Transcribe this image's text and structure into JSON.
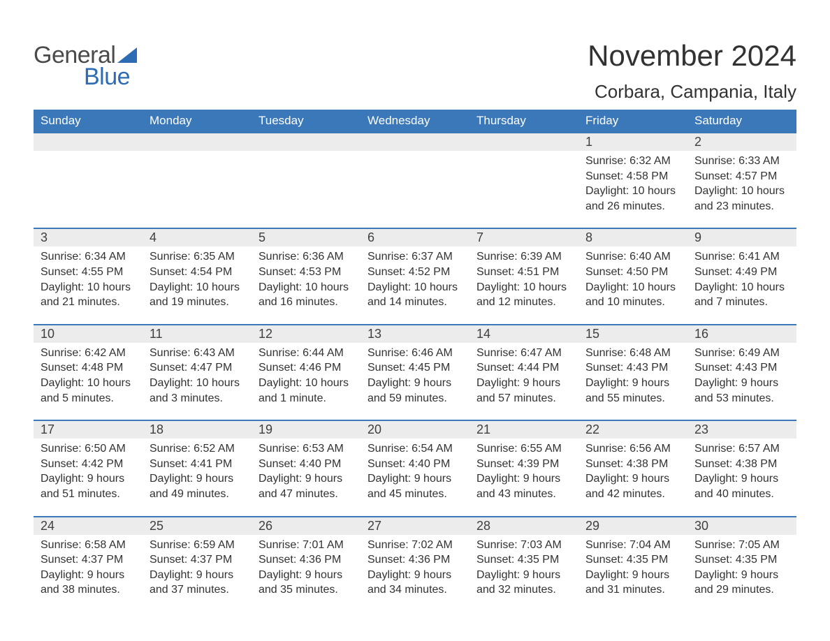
{
  "logo": {
    "text_general": "General",
    "text_blue": "Blue",
    "general_color": "#4a4a4a",
    "blue_color": "#2d6bb4"
  },
  "header": {
    "month_title": "November 2024",
    "location": "Corbara, Campania, Italy"
  },
  "colors": {
    "header_bg": "#3a78b9",
    "header_text": "#ffffff",
    "daynum_bg": "#ececec",
    "week_border": "#3a78b9",
    "body_text": "#323232"
  },
  "day_names": [
    "Sunday",
    "Monday",
    "Tuesday",
    "Wednesday",
    "Thursday",
    "Friday",
    "Saturday"
  ],
  "weeks": [
    {
      "nums": [
        "",
        "",
        "",
        "",
        "",
        "1",
        "2"
      ],
      "cells": [
        null,
        null,
        null,
        null,
        null,
        {
          "sunrise": "Sunrise: 6:32 AM",
          "sunset": "Sunset: 4:58 PM",
          "daylight1": "Daylight: 10 hours",
          "daylight2": "and 26 minutes."
        },
        {
          "sunrise": "Sunrise: 6:33 AM",
          "sunset": "Sunset: 4:57 PM",
          "daylight1": "Daylight: 10 hours",
          "daylight2": "and 23 minutes."
        }
      ]
    },
    {
      "nums": [
        "3",
        "4",
        "5",
        "6",
        "7",
        "8",
        "9"
      ],
      "cells": [
        {
          "sunrise": "Sunrise: 6:34 AM",
          "sunset": "Sunset: 4:55 PM",
          "daylight1": "Daylight: 10 hours",
          "daylight2": "and 21 minutes."
        },
        {
          "sunrise": "Sunrise: 6:35 AM",
          "sunset": "Sunset: 4:54 PM",
          "daylight1": "Daylight: 10 hours",
          "daylight2": "and 19 minutes."
        },
        {
          "sunrise": "Sunrise: 6:36 AM",
          "sunset": "Sunset: 4:53 PM",
          "daylight1": "Daylight: 10 hours",
          "daylight2": "and 16 minutes."
        },
        {
          "sunrise": "Sunrise: 6:37 AM",
          "sunset": "Sunset: 4:52 PM",
          "daylight1": "Daylight: 10 hours",
          "daylight2": "and 14 minutes."
        },
        {
          "sunrise": "Sunrise: 6:39 AM",
          "sunset": "Sunset: 4:51 PM",
          "daylight1": "Daylight: 10 hours",
          "daylight2": "and 12 minutes."
        },
        {
          "sunrise": "Sunrise: 6:40 AM",
          "sunset": "Sunset: 4:50 PM",
          "daylight1": "Daylight: 10 hours",
          "daylight2": "and 10 minutes."
        },
        {
          "sunrise": "Sunrise: 6:41 AM",
          "sunset": "Sunset: 4:49 PM",
          "daylight1": "Daylight: 10 hours",
          "daylight2": "and 7 minutes."
        }
      ]
    },
    {
      "nums": [
        "10",
        "11",
        "12",
        "13",
        "14",
        "15",
        "16"
      ],
      "cells": [
        {
          "sunrise": "Sunrise: 6:42 AM",
          "sunset": "Sunset: 4:48 PM",
          "daylight1": "Daylight: 10 hours",
          "daylight2": "and 5 minutes."
        },
        {
          "sunrise": "Sunrise: 6:43 AM",
          "sunset": "Sunset: 4:47 PM",
          "daylight1": "Daylight: 10 hours",
          "daylight2": "and 3 minutes."
        },
        {
          "sunrise": "Sunrise: 6:44 AM",
          "sunset": "Sunset: 4:46 PM",
          "daylight1": "Daylight: 10 hours",
          "daylight2": "and 1 minute."
        },
        {
          "sunrise": "Sunrise: 6:46 AM",
          "sunset": "Sunset: 4:45 PM",
          "daylight1": "Daylight: 9 hours",
          "daylight2": "and 59 minutes."
        },
        {
          "sunrise": "Sunrise: 6:47 AM",
          "sunset": "Sunset: 4:44 PM",
          "daylight1": "Daylight: 9 hours",
          "daylight2": "and 57 minutes."
        },
        {
          "sunrise": "Sunrise: 6:48 AM",
          "sunset": "Sunset: 4:43 PM",
          "daylight1": "Daylight: 9 hours",
          "daylight2": "and 55 minutes."
        },
        {
          "sunrise": "Sunrise: 6:49 AM",
          "sunset": "Sunset: 4:43 PM",
          "daylight1": "Daylight: 9 hours",
          "daylight2": "and 53 minutes."
        }
      ]
    },
    {
      "nums": [
        "17",
        "18",
        "19",
        "20",
        "21",
        "22",
        "23"
      ],
      "cells": [
        {
          "sunrise": "Sunrise: 6:50 AM",
          "sunset": "Sunset: 4:42 PM",
          "daylight1": "Daylight: 9 hours",
          "daylight2": "and 51 minutes."
        },
        {
          "sunrise": "Sunrise: 6:52 AM",
          "sunset": "Sunset: 4:41 PM",
          "daylight1": "Daylight: 9 hours",
          "daylight2": "and 49 minutes."
        },
        {
          "sunrise": "Sunrise: 6:53 AM",
          "sunset": "Sunset: 4:40 PM",
          "daylight1": "Daylight: 9 hours",
          "daylight2": "and 47 minutes."
        },
        {
          "sunrise": "Sunrise: 6:54 AM",
          "sunset": "Sunset: 4:40 PM",
          "daylight1": "Daylight: 9 hours",
          "daylight2": "and 45 minutes."
        },
        {
          "sunrise": "Sunrise: 6:55 AM",
          "sunset": "Sunset: 4:39 PM",
          "daylight1": "Daylight: 9 hours",
          "daylight2": "and 43 minutes."
        },
        {
          "sunrise": "Sunrise: 6:56 AM",
          "sunset": "Sunset: 4:38 PM",
          "daylight1": "Daylight: 9 hours",
          "daylight2": "and 42 minutes."
        },
        {
          "sunrise": "Sunrise: 6:57 AM",
          "sunset": "Sunset: 4:38 PM",
          "daylight1": "Daylight: 9 hours",
          "daylight2": "and 40 minutes."
        }
      ]
    },
    {
      "nums": [
        "24",
        "25",
        "26",
        "27",
        "28",
        "29",
        "30"
      ],
      "cells": [
        {
          "sunrise": "Sunrise: 6:58 AM",
          "sunset": "Sunset: 4:37 PM",
          "daylight1": "Daylight: 9 hours",
          "daylight2": "and 38 minutes."
        },
        {
          "sunrise": "Sunrise: 6:59 AM",
          "sunset": "Sunset: 4:37 PM",
          "daylight1": "Daylight: 9 hours",
          "daylight2": "and 37 minutes."
        },
        {
          "sunrise": "Sunrise: 7:01 AM",
          "sunset": "Sunset: 4:36 PM",
          "daylight1": "Daylight: 9 hours",
          "daylight2": "and 35 minutes."
        },
        {
          "sunrise": "Sunrise: 7:02 AM",
          "sunset": "Sunset: 4:36 PM",
          "daylight1": "Daylight: 9 hours",
          "daylight2": "and 34 minutes."
        },
        {
          "sunrise": "Sunrise: 7:03 AM",
          "sunset": "Sunset: 4:35 PM",
          "daylight1": "Daylight: 9 hours",
          "daylight2": "and 32 minutes."
        },
        {
          "sunrise": "Sunrise: 7:04 AM",
          "sunset": "Sunset: 4:35 PM",
          "daylight1": "Daylight: 9 hours",
          "daylight2": "and 31 minutes."
        },
        {
          "sunrise": "Sunrise: 7:05 AM",
          "sunset": "Sunset: 4:35 PM",
          "daylight1": "Daylight: 9 hours",
          "daylight2": "and 29 minutes."
        }
      ]
    }
  ]
}
